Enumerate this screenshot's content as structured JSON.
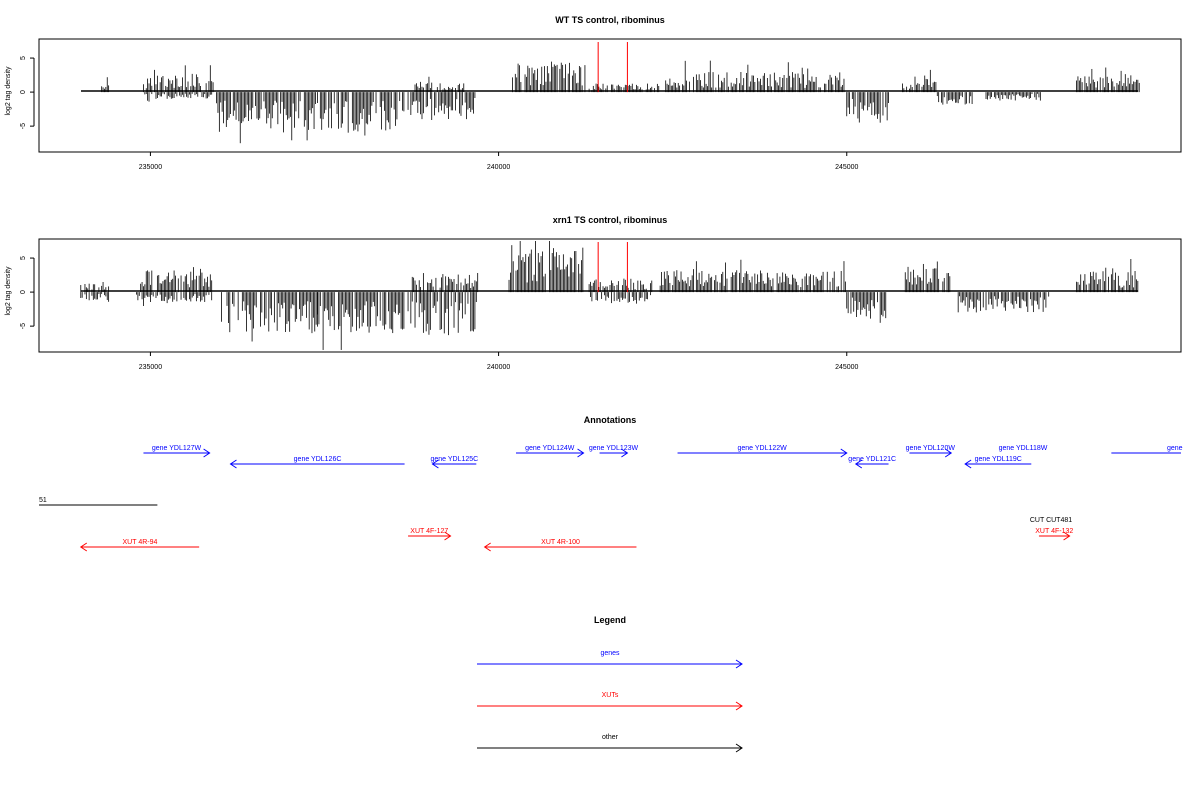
{
  "chart_data": [
    {
      "type": "bar",
      "title": "WT TS control, ribominus",
      "xlabel": "",
      "ylabel": "log2 tag density",
      "xlim": [
        233400,
        249800
      ],
      "ylim": [
        -8.8,
        7.8
      ],
      "xticks": [
        235000,
        240000,
        245000
      ],
      "xtick_labels": [
        "235000",
        "240000",
        "245000"
      ],
      "yticks": [
        -5,
        0,
        5
      ],
      "ytick_labels": [
        "-5",
        "0",
        "5"
      ],
      "data_range": [
        234000,
        249200
      ],
      "highlight_x": [
        241430,
        241850
      ],
      "highlight_color": "#ff0000",
      "signal_regions": [
        {
          "from": 234300,
          "to": 234400,
          "sign": 1,
          "level": 1.2
        },
        {
          "from": 234900,
          "to": 235900,
          "sign": 1,
          "level": 2.2
        },
        {
          "from": 234900,
          "to": 235900,
          "sign": -1,
          "level": 0.8
        },
        {
          "from": 235950,
          "to": 237400,
          "sign": -1,
          "level": 4.8
        },
        {
          "from": 237400,
          "to": 238650,
          "sign": -1,
          "level": 5.0
        },
        {
          "from": 238700,
          "to": 239680,
          "sign": -1,
          "level": 3.4
        },
        {
          "from": 238800,
          "to": 239500,
          "sign": 1,
          "level": 1.2
        },
        {
          "from": 240200,
          "to": 241250,
          "sign": 1,
          "level": 3.6
        },
        {
          "from": 241300,
          "to": 242300,
          "sign": 1,
          "level": 1.0
        },
        {
          "from": 242400,
          "to": 244980,
          "sign": 1,
          "level": 2.4
        },
        {
          "from": 245000,
          "to": 245600,
          "sign": -1,
          "level": 3.6
        },
        {
          "from": 245800,
          "to": 246300,
          "sign": 1,
          "level": 2.0
        },
        {
          "from": 246300,
          "to": 246800,
          "sign": -1,
          "level": 1.5
        },
        {
          "from": 247000,
          "to": 247800,
          "sign": -1,
          "level": 1.0
        },
        {
          "from": 248300,
          "to": 249200,
          "sign": 1,
          "level": 2.0
        }
      ]
    },
    {
      "type": "bar",
      "title": "xrn1 TS control, ribominus",
      "xlabel": "",
      "ylabel": "log2 tag density",
      "xlim": [
        233400,
        249800
      ],
      "ylim": [
        -8.8,
        7.8
      ],
      "xticks": [
        235000,
        240000,
        245000
      ],
      "xtick_labels": [
        "235000",
        "240000",
        "245000"
      ],
      "yticks": [
        -5,
        0,
        5
      ],
      "ytick_labels": [
        "-5",
        "0",
        "5"
      ],
      "data_range": [
        234000,
        249200
      ],
      "highlight_x": [
        241430,
        241850
      ],
      "highlight_color": "#ff0000",
      "signal_regions": [
        {
          "from": 234000,
          "to": 234400,
          "sign": 1,
          "level": 1.2
        },
        {
          "from": 234000,
          "to": 234400,
          "sign": -1,
          "level": 1.0
        },
        {
          "from": 234800,
          "to": 235900,
          "sign": 1,
          "level": 2.8
        },
        {
          "from": 234800,
          "to": 235900,
          "sign": -1,
          "level": 1.2
        },
        {
          "from": 236000,
          "to": 237400,
          "sign": -1,
          "level": 5.0
        },
        {
          "from": 237400,
          "to": 238650,
          "sign": -1,
          "level": 4.8
        },
        {
          "from": 238700,
          "to": 239700,
          "sign": 1,
          "level": 2.4
        },
        {
          "from": 238700,
          "to": 239700,
          "sign": -1,
          "level": 5.4
        },
        {
          "from": 240150,
          "to": 241220,
          "sign": 1,
          "level": 5.6
        },
        {
          "from": 241300,
          "to": 242200,
          "sign": 1,
          "level": 1.6
        },
        {
          "from": 241300,
          "to": 242200,
          "sign": -1,
          "level": 1.4
        },
        {
          "from": 242300,
          "to": 244980,
          "sign": 1,
          "level": 2.6
        },
        {
          "from": 245000,
          "to": 245600,
          "sign": -1,
          "level": 3.2
        },
        {
          "from": 245800,
          "to": 246500,
          "sign": 1,
          "level": 2.8
        },
        {
          "from": 246600,
          "to": 247900,
          "sign": -1,
          "level": 2.4
        },
        {
          "from": 248300,
          "to": 249200,
          "sign": 1,
          "level": 2.6
        }
      ]
    }
  ],
  "annotations": {
    "title": "Annotations",
    "scale_label": "51",
    "scale_length": 1700,
    "features": [
      {
        "label": "gene YDL127W",
        "start": 234900,
        "end": 235850,
        "strand": "+",
        "color": "#0000ff",
        "row": 1
      },
      {
        "label": "gene YDL126C",
        "start": 236150,
        "end": 238650,
        "strand": "-",
        "color": "#0000ff",
        "row": 2
      },
      {
        "label": "gene YDL125C",
        "start": 239050,
        "end": 239680,
        "strand": "-",
        "color": "#0000ff",
        "row": 2
      },
      {
        "label": "gene YDL124W",
        "start": 240250,
        "end": 241220,
        "strand": "+",
        "color": "#0000ff",
        "row": 1
      },
      {
        "label": "gene YDL123W",
        "start": 241450,
        "end": 241850,
        "strand": "+",
        "color": "#0000ff",
        "row": 1
      },
      {
        "label": "gene YDL122W",
        "start": 242570,
        "end": 245000,
        "strand": "+",
        "color": "#0000ff",
        "row": 1
      },
      {
        "label": "gene YDL121C",
        "start": 245130,
        "end": 245600,
        "strand": "-",
        "color": "#0000ff",
        "row": 2
      },
      {
        "label": "gene YDL120W",
        "start": 245900,
        "end": 246500,
        "strand": "+",
        "color": "#0000ff",
        "row": 1
      },
      {
        "label": "gene YDL119C",
        "start": 246700,
        "end": 247650,
        "strand": "-",
        "color": "#0000ff",
        "row": 2
      },
      {
        "label": "gene YDL118W",
        "start": 247650,
        "end": 247650,
        "strand": "+",
        "color": "#0000ff",
        "row": 1,
        "no_arrow": true
      },
      {
        "label": "gene",
        "start": 248800,
        "end": 249800,
        "strand": "+",
        "color": "#0000ff",
        "row": 1,
        "clip": true
      },
      {
        "label": "CUT CUT481",
        "start": 248000,
        "end": 248000,
        "strand": "+",
        "color": "#000000",
        "row": 4,
        "no_arrow": true
      },
      {
        "label": "XUT 4R-94",
        "start": 234000,
        "end": 235700,
        "strand": "-",
        "color": "#ff0000",
        "row": 6
      },
      {
        "label": "XUT 4F-127",
        "start": 238700,
        "end": 239310,
        "strand": "+",
        "color": "#ff0000",
        "row": 5
      },
      {
        "label": "XUT 4R-100",
        "start": 239800,
        "end": 241980,
        "strand": "-",
        "color": "#ff0000",
        "row": 6
      },
      {
        "label": "XUT 4F-132",
        "start": 247760,
        "end": 248200,
        "strand": "+",
        "color": "#ff0000",
        "row": 5
      }
    ]
  },
  "legend": {
    "title": "Legend",
    "items": [
      {
        "label": "genes",
        "color": "#0000ff"
      },
      {
        "label": "XUTs",
        "color": "#ff0000"
      },
      {
        "label": "other",
        "color": "#000000"
      }
    ]
  }
}
